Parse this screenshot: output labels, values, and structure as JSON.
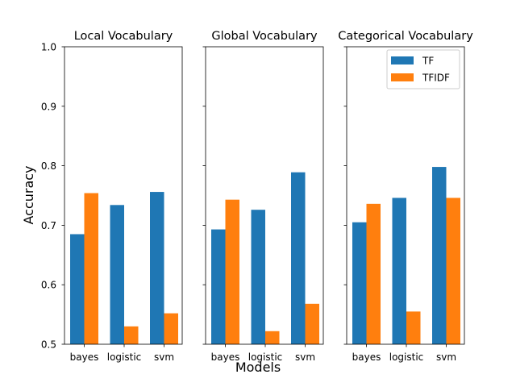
{
  "figure": {
    "ylabel": "Accuracy",
    "xlabel": "Models"
  },
  "chart_data": [
    {
      "type": "bar",
      "title": "Local Vocabulary",
      "categories": [
        "bayes",
        "logistic",
        "svm"
      ],
      "series": [
        {
          "name": "TF",
          "values": [
            0.685,
            0.734,
            0.756
          ]
        },
        {
          "name": "TFIDF",
          "values": [
            0.754,
            0.53,
            0.552
          ]
        }
      ],
      "ylim": [
        0.5,
        1.0
      ],
      "yticks": [
        "0.5",
        "0.6",
        "0.7",
        "0.8",
        "0.9",
        "1.0"
      ],
      "colors": [
        "#1f77b4",
        "#ff7f0e"
      ],
      "legend": false
    },
    {
      "type": "bar",
      "title": "Global Vocabulary",
      "categories": [
        "bayes",
        "logistic",
        "svm"
      ],
      "series": [
        {
          "name": "TF",
          "values": [
            0.693,
            0.726,
            0.789
          ]
        },
        {
          "name": "TFIDF",
          "values": [
            0.743,
            0.522,
            0.568
          ]
        }
      ],
      "ylim": [
        0.5,
        1.0
      ],
      "colors": [
        "#1f77b4",
        "#ff7f0e"
      ],
      "legend": false
    },
    {
      "type": "bar",
      "title": "Categorical Vocabulary",
      "categories": [
        "bayes",
        "logistic",
        "svm"
      ],
      "series": [
        {
          "name": "TF",
          "values": [
            0.705,
            0.746,
            0.798
          ]
        },
        {
          "name": "TFIDF",
          "values": [
            0.736,
            0.555,
            0.746
          ]
        }
      ],
      "ylim": [
        0.5,
        1.0
      ],
      "colors": [
        "#1f77b4",
        "#ff7f0e"
      ],
      "legend": true,
      "legend_position": "top-right"
    }
  ]
}
